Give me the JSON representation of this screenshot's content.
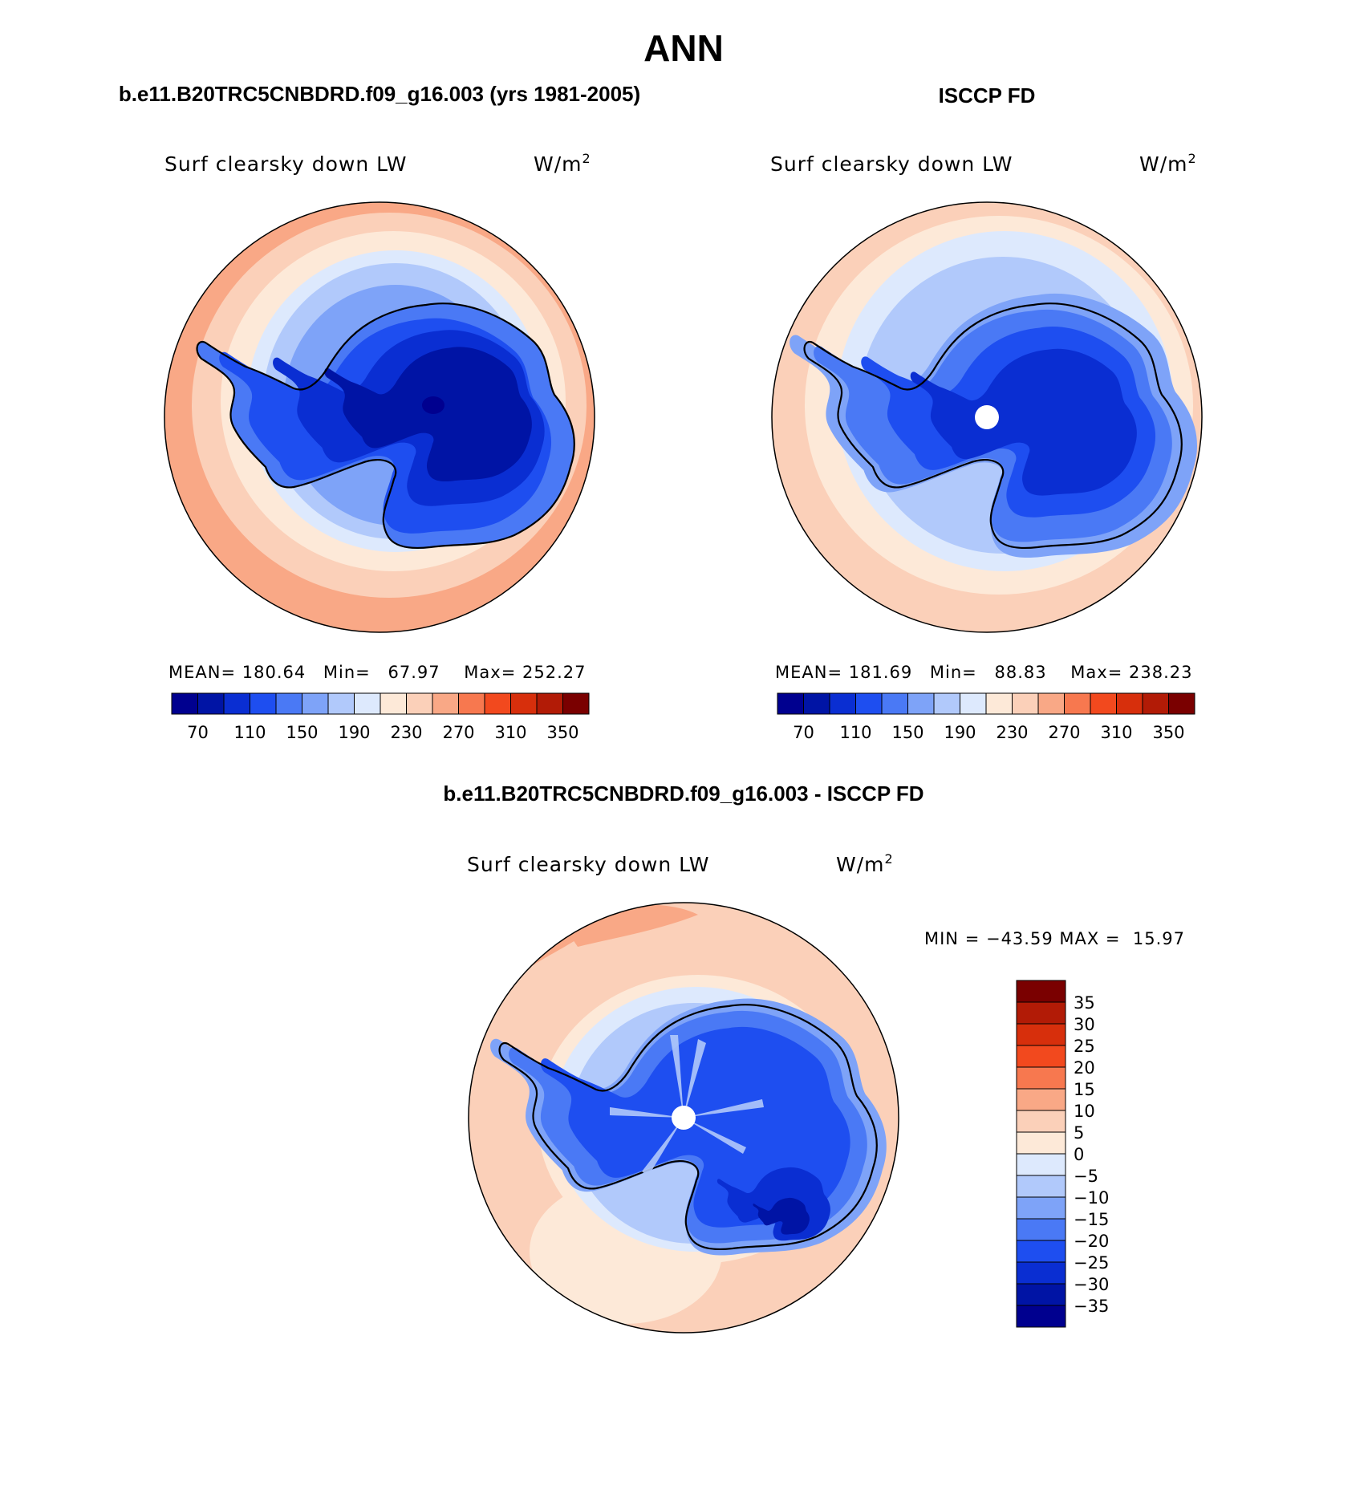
{
  "figure": {
    "title": "ANN",
    "colors": {
      "scale": [
        "#00008f",
        "#0014a5",
        "#0a2ed2",
        "#1e4ef0",
        "#4a79f5",
        "#7ea3f8",
        "#b1c9fb",
        "#dde9fd",
        "#fde9d8",
        "#fbd0b9",
        "#f9a886",
        "#f7784f",
        "#f2491e",
        "#d72f0c",
        "#b21b06",
        "#7a0000"
      ],
      "diff": [
        "#00008f",
        "#0014a5",
        "#0a2ed2",
        "#1e4ef0",
        "#4a79f5",
        "#7ea3f8",
        "#b1c9fb",
        "#dde9fd",
        "#fde9d8",
        "#fbd0b9",
        "#f9a886",
        "#f7784f",
        "#f2491e",
        "#d72f0c",
        "#b21b06",
        "#7a0000"
      ]
    }
  },
  "panels": [
    {
      "heading": "b.e11.B20TRC5CNBDRD.f09_g16.003 (yrs 1981-2005)",
      "variable": "Surf clearsky down LW",
      "units": "W/m",
      "units_exp": "2",
      "stats": {
        "mean_label": "MEAN=",
        "mean": "180.64",
        "min_label": "Min=",
        "min": "67.97",
        "max_label": "Max=",
        "max": "252.27"
      },
      "colorbar_ticks": [
        "70",
        "110",
        "150",
        "190",
        "230",
        "270",
        "310",
        "350"
      ]
    },
    {
      "heading": "ISCCP FD",
      "variable": "Surf clearsky down LW",
      "units": "W/m",
      "units_exp": "2",
      "stats": {
        "mean_label": "MEAN=",
        "mean": "181.69",
        "min_label": "Min=",
        "min": "88.83",
        "max_label": "Max=",
        "max": "238.23"
      },
      "colorbar_ticks": [
        "70",
        "110",
        "150",
        "190",
        "230",
        "270",
        "310",
        "350"
      ]
    }
  ],
  "difference": {
    "heading": "b.e11.B20TRC5CNBDRD.f09_g16.003 - ISCCP FD",
    "variable": "Surf clearsky down LW",
    "units": "W/m",
    "units_exp": "2",
    "minmax_text": "MIN = −43.59 MAX =  15.97",
    "colorbar_ticks": [
      "35",
      "30",
      "25",
      "20",
      "15",
      "10",
      "5",
      "0",
      "−5",
      "−10",
      "−15",
      "−20",
      "−25",
      "−30",
      "−35"
    ]
  }
}
